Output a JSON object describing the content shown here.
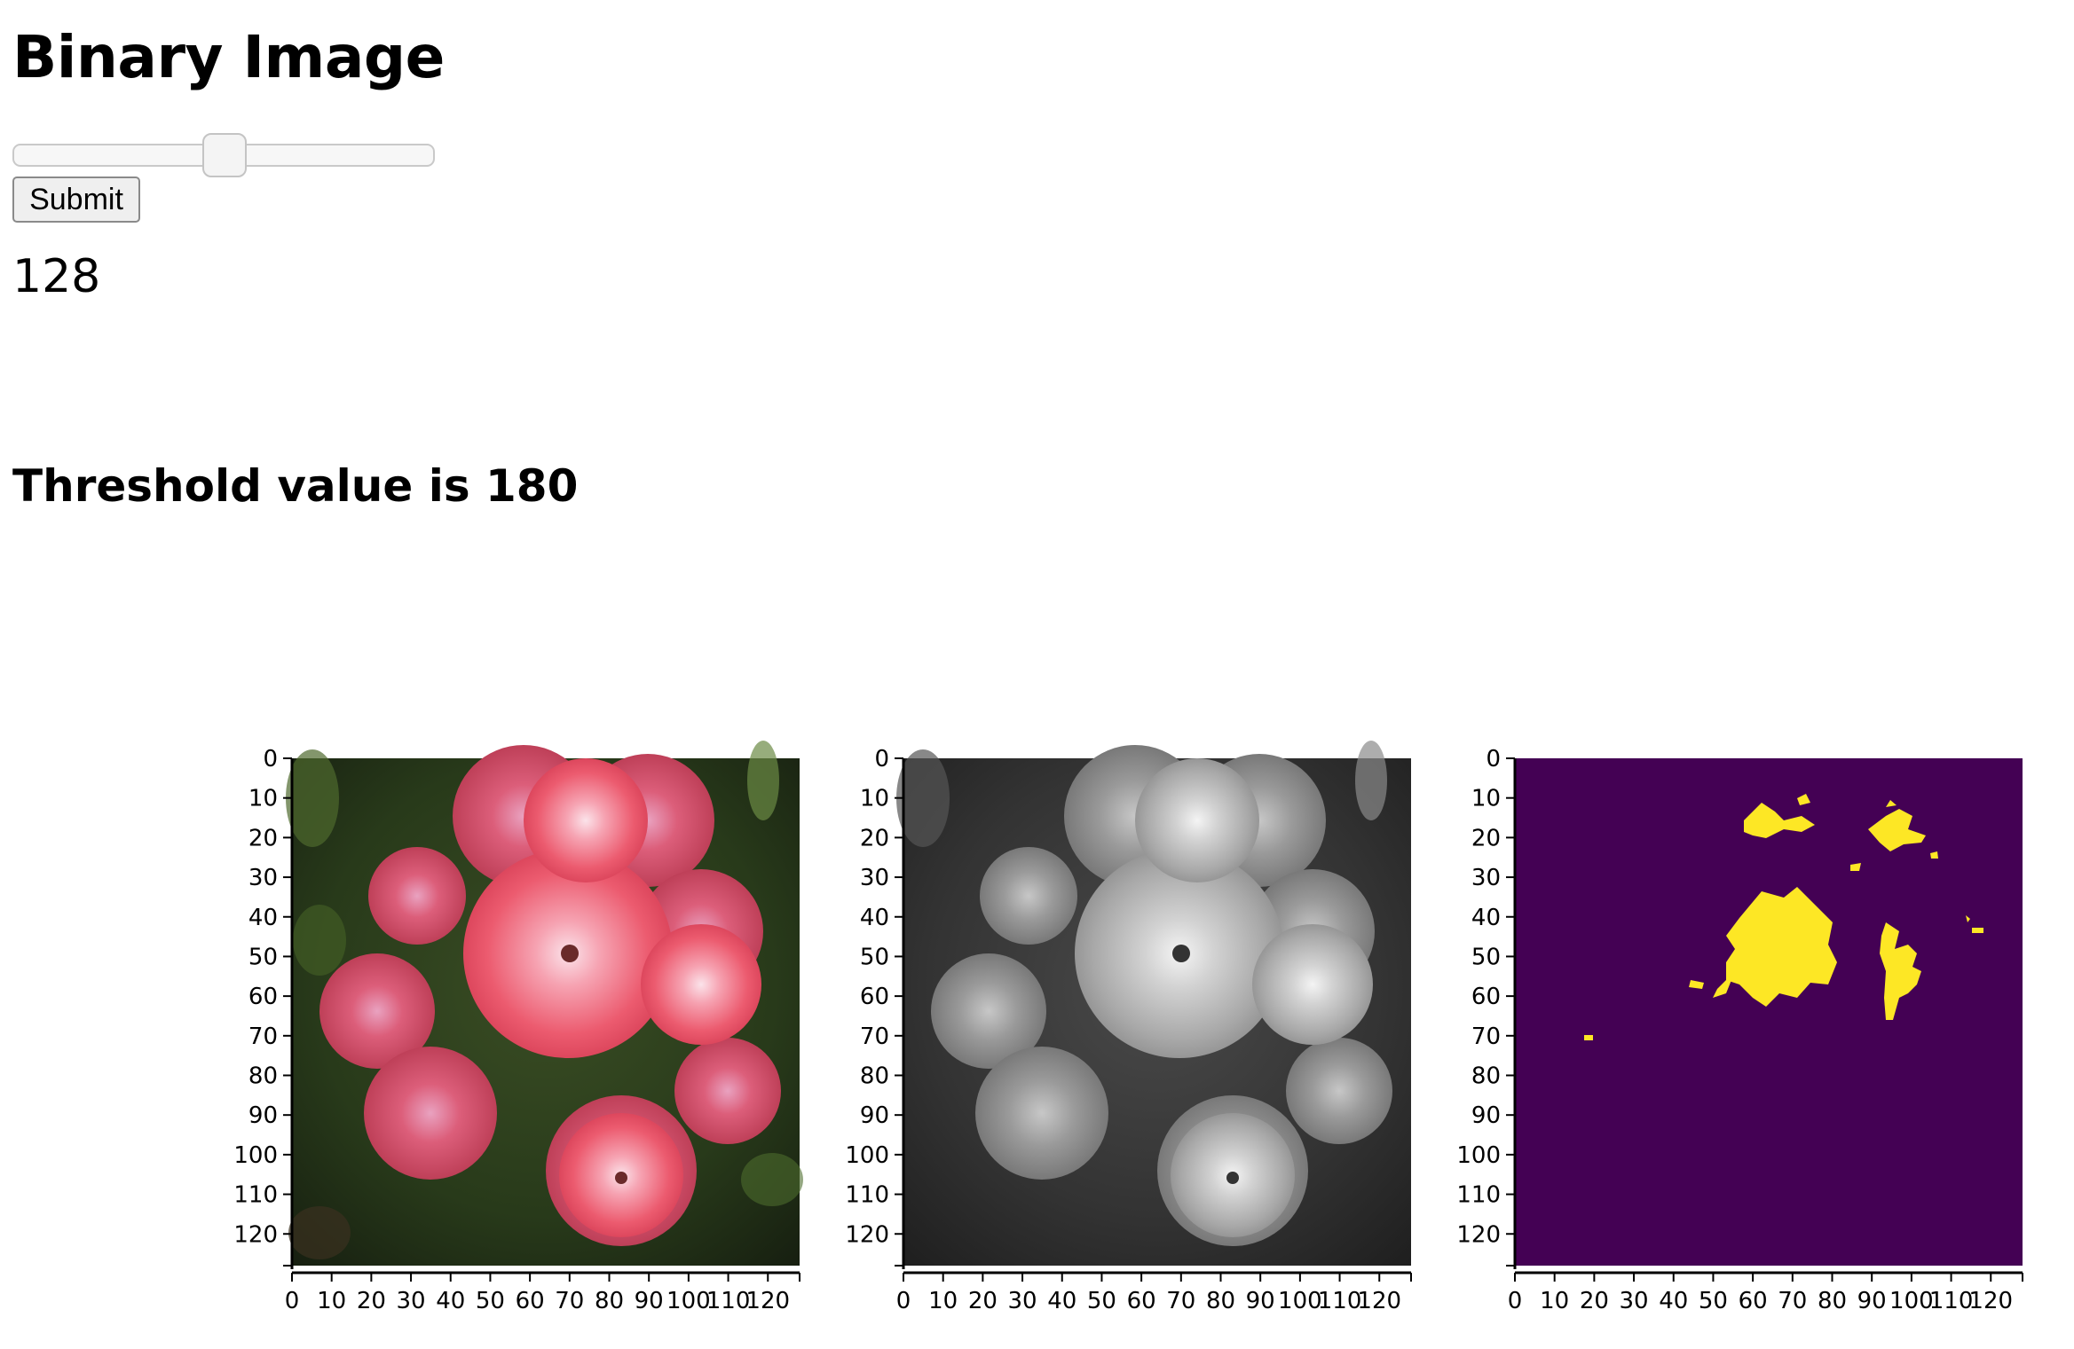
{
  "page": {
    "title": "Binary Image",
    "slider": {
      "min": 0,
      "max": 255,
      "value": 128
    },
    "submit_label": "Submit",
    "slider_value_text": "128",
    "threshold_text": "Threshold value is 180"
  },
  "chart_data": [
    {
      "type": "image",
      "name": "original",
      "xlim": [
        0,
        128
      ],
      "ylim": [
        128,
        0
      ],
      "xticks": [
        "0",
        "10",
        "20",
        "30",
        "40",
        "50",
        "60",
        "70",
        "80",
        "90",
        "100",
        "110",
        "120"
      ],
      "yticks": [
        "0",
        "10",
        "20",
        "30",
        "40",
        "50",
        "60",
        "70",
        "80",
        "90",
        "100",
        "110",
        "120"
      ]
    },
    {
      "type": "image",
      "name": "grayscale",
      "xlim": [
        0,
        128
      ],
      "ylim": [
        128,
        0
      ],
      "xticks": [
        "0",
        "10",
        "20",
        "30",
        "40",
        "50",
        "60",
        "70",
        "80",
        "90",
        "100",
        "110",
        "120"
      ],
      "yticks": [
        "0",
        "10",
        "20",
        "30",
        "40",
        "50",
        "60",
        "70",
        "80",
        "90",
        "100",
        "110",
        "120"
      ]
    },
    {
      "type": "image",
      "name": "binary",
      "xlim": [
        0,
        128
      ],
      "ylim": [
        128,
        0
      ],
      "xticks": [
        "0",
        "10",
        "20",
        "30",
        "40",
        "50",
        "60",
        "70",
        "80",
        "90",
        "100",
        "110",
        "120"
      ],
      "yticks": [
        "0",
        "10",
        "20",
        "30",
        "40",
        "50",
        "60",
        "70",
        "80",
        "90",
        "100",
        "110",
        "120"
      ],
      "colors": {
        "background": "#440154",
        "foreground": "#fde725"
      }
    }
  ]
}
